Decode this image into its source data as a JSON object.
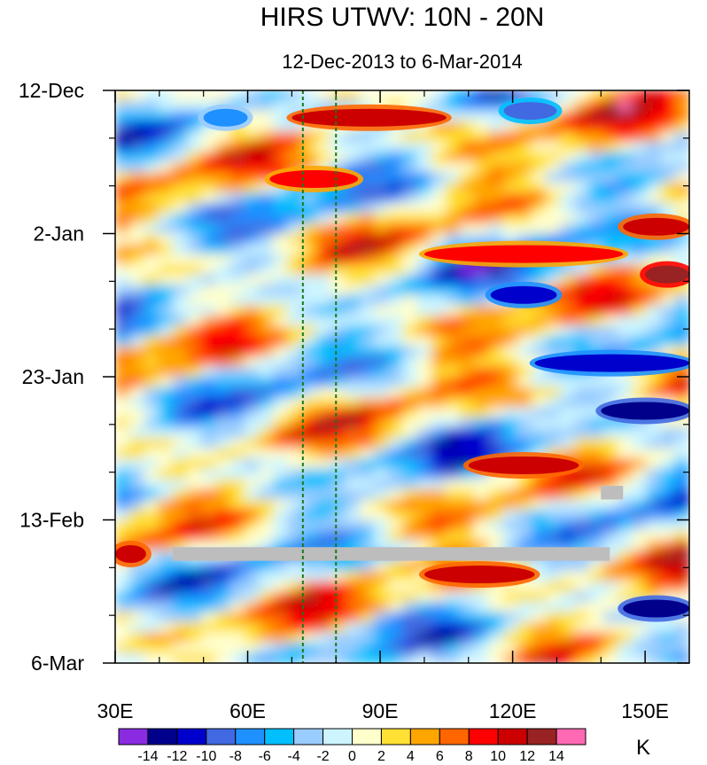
{
  "chart_data": {
    "type": "heatmap",
    "title": "HIRS UTWV: 10N - 20N",
    "subtitle": "12-Dec-2013 to 6-Mar-2014",
    "x_axis": {
      "range": [
        30,
        160
      ],
      "ticks": [
        {
          "value": 30,
          "label": "30E"
        },
        {
          "value": 60,
          "label": "60E"
        },
        {
          "value": 90,
          "label": "90E"
        },
        {
          "value": 120,
          "label": "120E"
        },
        {
          "value": 150,
          "label": "150E"
        }
      ]
    },
    "y_axis": {
      "range_days": [
        0,
        84
      ],
      "direction": "top-to-bottom",
      "ticks": [
        {
          "day": 0,
          "label": "12-Dec"
        },
        {
          "day": 21,
          "label": "2-Jan"
        },
        {
          "day": 42,
          "label": "23-Jan"
        },
        {
          "day": 63,
          "label": "13-Feb"
        },
        {
          "day": 84,
          "label": "6-Mar"
        }
      ]
    },
    "reference_lines_lon": [
      72.5,
      80
    ],
    "missing_data_bars": [
      {
        "lon_start": 43,
        "lon_end": 142,
        "day_start": 67,
        "day_end": 69
      },
      {
        "lon_start": 140,
        "lon_end": 145,
        "day_start": 58,
        "day_end": 60
      }
    ],
    "colorbar": {
      "unit": "K",
      "levels": [
        -14,
        -12,
        -10,
        -8,
        -6,
        -4,
        -2,
        0,
        2,
        4,
        6,
        8,
        10,
        12,
        14
      ],
      "colors": [
        "#8a2be2",
        "#00008b",
        "#0000cd",
        "#4169e1",
        "#1e90ff",
        "#00bfff",
        "#99ccff",
        "#ccf5ff",
        "#ffffcc",
        "#ffe033",
        "#ffa500",
        "#ff6600",
        "#ff0000",
        "#cc0000",
        "#992222",
        "#ff69b4"
      ]
    },
    "anomaly_features": [
      {
        "day": 4,
        "lon_start": 70,
        "lon_end": 105,
        "value": 11
      },
      {
        "day": 4,
        "lon_start": 50,
        "lon_end": 60,
        "value": -8
      },
      {
        "day": 3,
        "lon_start": 118,
        "lon_end": 130,
        "value": -10
      },
      {
        "day": 13,
        "lon_start": 65,
        "lon_end": 85,
        "value": 9
      },
      {
        "day": 20,
        "lon_start": 145,
        "lon_end": 160,
        "value": 10
      },
      {
        "day": 24,
        "lon_start": 100,
        "lon_end": 145,
        "value": 9
      },
      {
        "day": 27,
        "lon_start": 150,
        "lon_end": 160,
        "value": 13
      },
      {
        "day": 30,
        "lon_start": 115,
        "lon_end": 130,
        "value": -12
      },
      {
        "day": 40,
        "lon_start": 125,
        "lon_end": 160,
        "value": -11
      },
      {
        "day": 47,
        "lon_start": 140,
        "lon_end": 160,
        "value": -13
      },
      {
        "day": 55,
        "lon_start": 110,
        "lon_end": 135,
        "value": 10
      },
      {
        "day": 71,
        "lon_start": 100,
        "lon_end": 125,
        "value": 10
      },
      {
        "day": 76,
        "lon_start": 145,
        "lon_end": 160,
        "value": -14
      },
      {
        "day": 68,
        "lon_start": 30,
        "lon_end": 37,
        "value": 11
      }
    ]
  }
}
